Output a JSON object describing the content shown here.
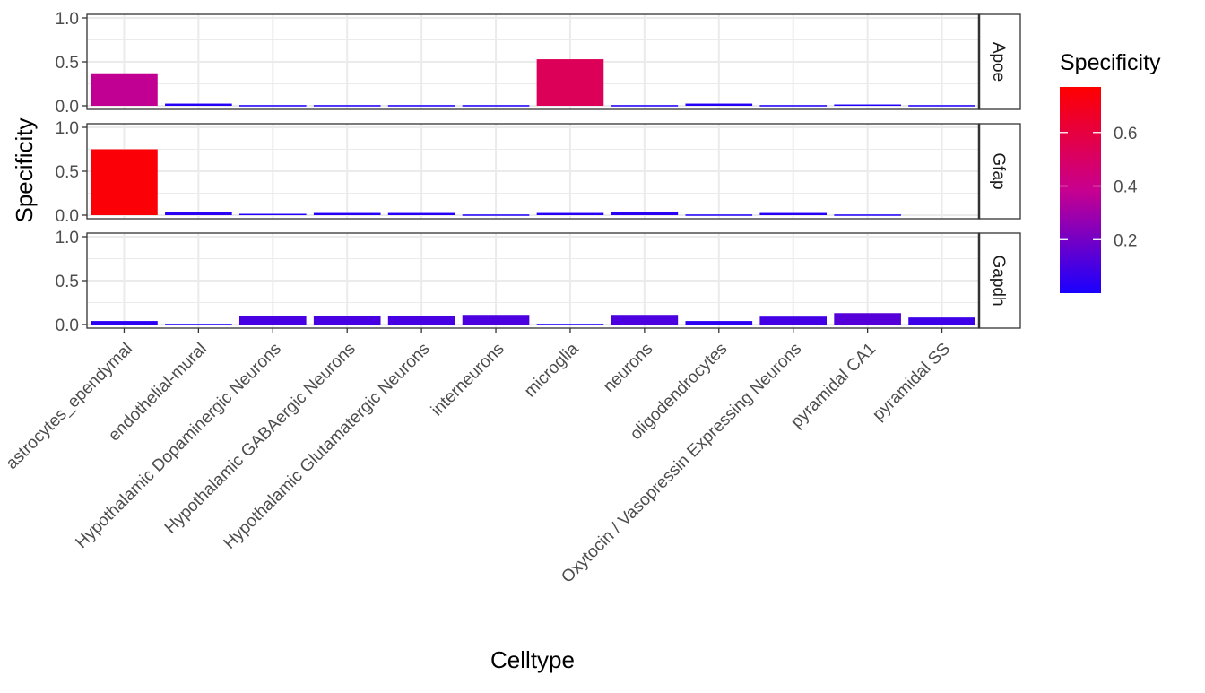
{
  "chart_data": {
    "type": "bar",
    "facet": "rows",
    "xlabel": "Celltype",
    "ylabel": "Specificity",
    "ylim": [
      0,
      1
    ],
    "y_ticks": [
      "0.0",
      "0.5",
      "1.0"
    ],
    "grid": true,
    "categories": [
      "astrocytes_ependymal",
      "endothelial-mural",
      "Hypothalamic Dopaminergic Neurons",
      "Hypothalamic GABAergic Neurons",
      "Hypothalamic Glutamatergic Neurons",
      "interneurons",
      "microglia",
      "neurons",
      "oligodendrocytes",
      "Oxytocin / Vasopressin Expressing Neurons",
      "pyramidal CA1",
      "pyramidal SS"
    ],
    "series": [
      {
        "name": "Apoe",
        "values": [
          0.37,
          0.025,
          0.008,
          0.008,
          0.008,
          0.008,
          0.53,
          0.008,
          0.025,
          0.008,
          0.015,
          0.008
        ]
      },
      {
        "name": "Gfap",
        "values": [
          0.75,
          0.04,
          0.015,
          0.025,
          0.025,
          0.008,
          0.025,
          0.035,
          0.008,
          0.025,
          0.008,
          null
        ]
      },
      {
        "name": "Gapdh",
        "values": [
          0.04,
          0.008,
          0.1,
          0.1,
          0.1,
          0.11,
          0.008,
          0.11,
          0.04,
          0.09,
          0.13,
          0.08
        ]
      }
    ],
    "legend": {
      "title": "Specificity",
      "position": "right",
      "ticks": [
        "0.2",
        "0.4",
        "0.6"
      ],
      "range": [
        0.0,
        0.77
      ],
      "tick_values": [
        0.2,
        0.4,
        0.6
      ],
      "color_low": "#1a00ff",
      "color_mid": "#c8008f",
      "color_high": "#ff0000"
    },
    "colors": {
      "grid": "#ebebeb",
      "panel_border": "#333333",
      "strip_fill": "#ffffff",
      "axis_text": "#4d4d4d"
    }
  }
}
